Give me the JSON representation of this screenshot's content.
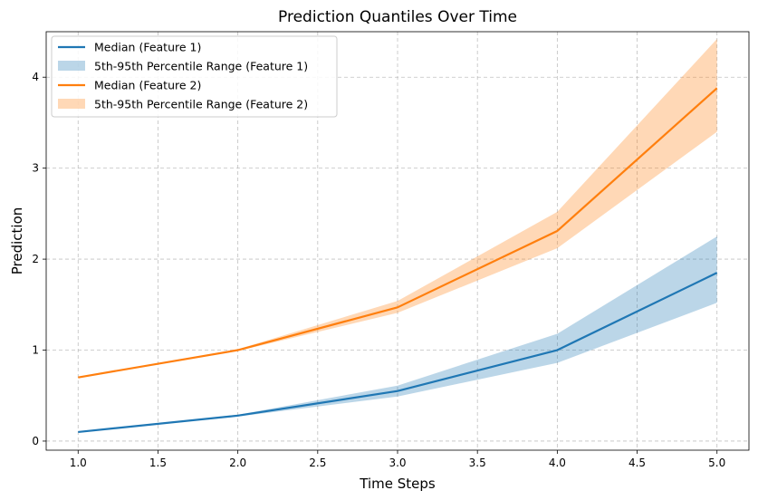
{
  "chart_data": {
    "type": "line",
    "title": "Prediction Quantiles Over Time",
    "xlabel": "Time Steps",
    "ylabel": "Prediction",
    "xlim": [
      0.8,
      5.2
    ],
    "ylim": [
      -0.1,
      4.5
    ],
    "x_ticks": [
      "1.0",
      "1.5",
      "2.0",
      "2.5",
      "3.0",
      "3.5",
      "4.0",
      "4.5",
      "5.0"
    ],
    "y_ticks": [
      "0",
      "1",
      "2",
      "3",
      "4"
    ],
    "grid": true,
    "legend_position": "top-left",
    "x": [
      1.0,
      2.0,
      3.0,
      4.0,
      5.0
    ],
    "series": [
      {
        "name": "Median (Feature 1)",
        "band_name": "5th-95th Percentile Range (Feature 1)",
        "color": "#1f77b4",
        "band_color": "#1f77b4",
        "median": [
          0.1,
          0.28,
          0.55,
          1.0,
          1.85
        ],
        "lower": [
          0.1,
          0.27,
          0.49,
          0.86,
          1.52
        ],
        "upper": [
          0.1,
          0.29,
          0.61,
          1.18,
          2.25
        ]
      },
      {
        "name": "Median (Feature 2)",
        "band_name": "5th-95th Percentile Range (Feature 2)",
        "color": "#ff7f0e",
        "band_color": "#ff7f0e",
        "median": [
          0.7,
          1.0,
          1.47,
          2.31,
          3.88
        ],
        "lower": [
          0.7,
          0.99,
          1.41,
          2.12,
          3.4
        ],
        "upper": [
          0.7,
          1.01,
          1.54,
          2.52,
          4.42
        ]
      }
    ]
  }
}
